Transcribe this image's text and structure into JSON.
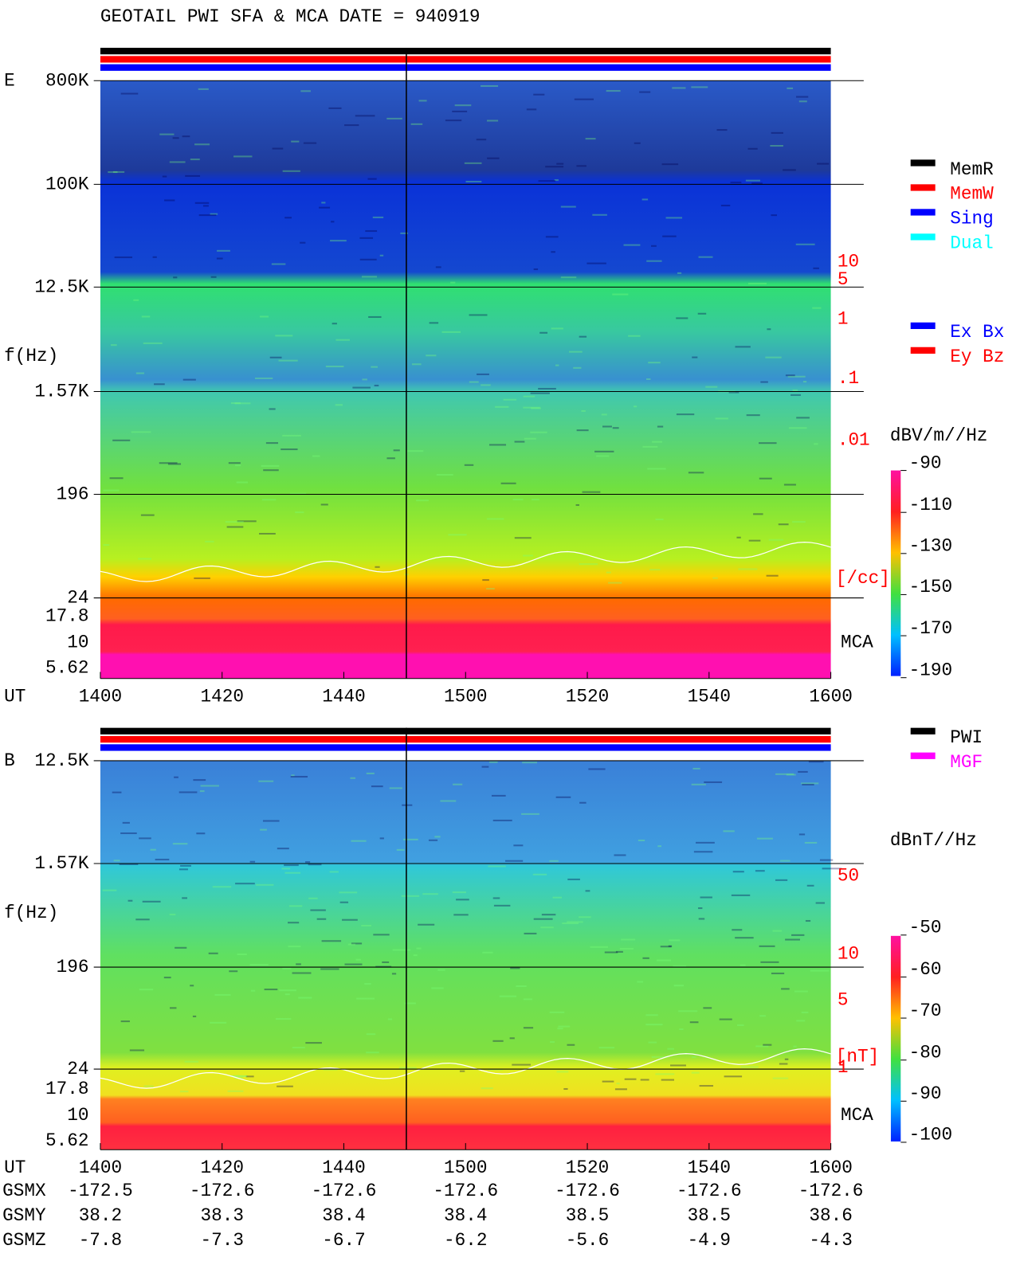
{
  "header": {
    "title": "GEOTAIL  PWI SFA & MCA   DATE = 940919"
  },
  "panels": [
    {
      "label": "E",
      "freq_labels": [
        "800K",
        "100K",
        "12.5K",
        "1.57K",
        "196",
        "24",
        "17.8",
        "10",
        "5.62"
      ],
      "axis_label": "f(Hz)",
      "time_label": "UT",
      "time_ticks": [
        "1400",
        "1420",
        "1440",
        "1500",
        "1520",
        "1540",
        "1600"
      ],
      "right_scale": [
        "10",
        "5",
        "1",
        ".1",
        ".01"
      ],
      "right_unit": "[/cc]",
      "mca": "MCA",
      "legend": [
        {
          "name": "MemR",
          "color": "#000000"
        },
        {
          "name": "MemW",
          "color": "#ff0000"
        },
        {
          "name": "Sing",
          "color": "#0000ff"
        },
        {
          "name": "Dual",
          "color": "#00ffff"
        }
      ],
      "legend2": [
        {
          "name": "Ex Bx",
          "color": "#0000ff"
        },
        {
          "name": "Ey Bz",
          "color": "#ff0000"
        }
      ],
      "colorbar": {
        "unit": "dBV/m//Hz",
        "ticks": [
          "-90",
          "-110",
          "-130",
          "-150",
          "-170",
          "-190"
        ]
      }
    },
    {
      "label": "B",
      "freq_labels": [
        "12.5K",
        "1.57K",
        "196",
        "24",
        "17.8",
        "10",
        "5.62"
      ],
      "axis_label": "f(Hz)",
      "time_label": "UT",
      "time_ticks": [
        "1400",
        "1420",
        "1440",
        "1500",
        "1520",
        "1540",
        "1600"
      ],
      "right_scale": [
        "50",
        "10",
        "5",
        "1"
      ],
      "right_unit": "[nT]",
      "mca": "MCA",
      "legend": [
        {
          "name": "PWI",
          "color": "#000000"
        },
        {
          "name": "MGF",
          "color": "#ff00ff"
        }
      ],
      "colorbar": {
        "unit": "dBnT//Hz",
        "ticks": [
          "-50",
          "-60",
          "-70",
          "-80",
          "-90",
          "-100"
        ]
      }
    }
  ],
  "ephemeris": {
    "rows": [
      {
        "name": "GSMX",
        "values": [
          "-172.5",
          "-172.6",
          "-172.6",
          "-172.6",
          "-172.6",
          "-172.6",
          "-172.6"
        ]
      },
      {
        "name": "GSMY",
        "values": [
          "38.2",
          "38.3",
          "38.4",
          "38.4",
          "38.5",
          "38.5",
          "38.6"
        ]
      },
      {
        "name": "GSMZ",
        "values": [
          "-7.8",
          "-7.3",
          "-6.7",
          "-6.2",
          "-5.6",
          "-4.9",
          "-4.3"
        ]
      }
    ]
  }
}
